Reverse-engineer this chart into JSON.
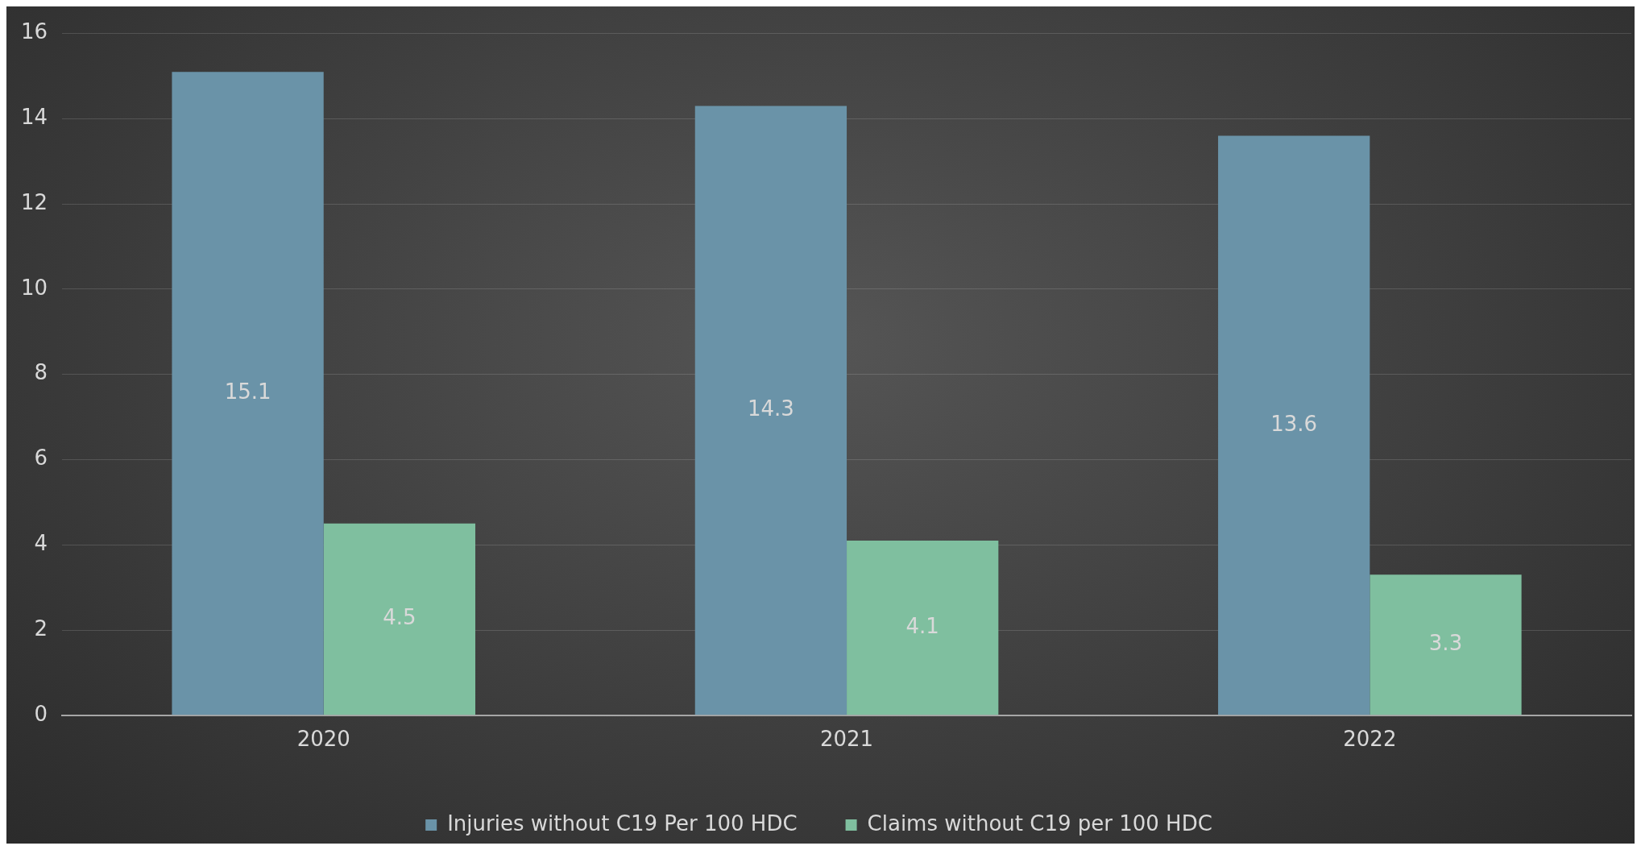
{
  "chart_data": {
    "type": "bar",
    "categories": [
      "2020",
      "2021",
      "2022"
    ],
    "series": [
      {
        "name": "Injuries without C19 Per 100 HDC",
        "color": "#6a93a8",
        "values": [
          15.1,
          14.3,
          13.6
        ]
      },
      {
        "name": "Claims without C19 per 100 HDC",
        "color": "#7fbf9f",
        "values": [
          4.5,
          4.1,
          3.3
        ]
      }
    ],
    "ylim": [
      0,
      16
    ],
    "yticks": [
      0,
      2,
      4,
      6,
      8,
      10,
      12,
      14,
      16
    ],
    "grid": "y",
    "legend": "bottom",
    "data_labels": true
  }
}
